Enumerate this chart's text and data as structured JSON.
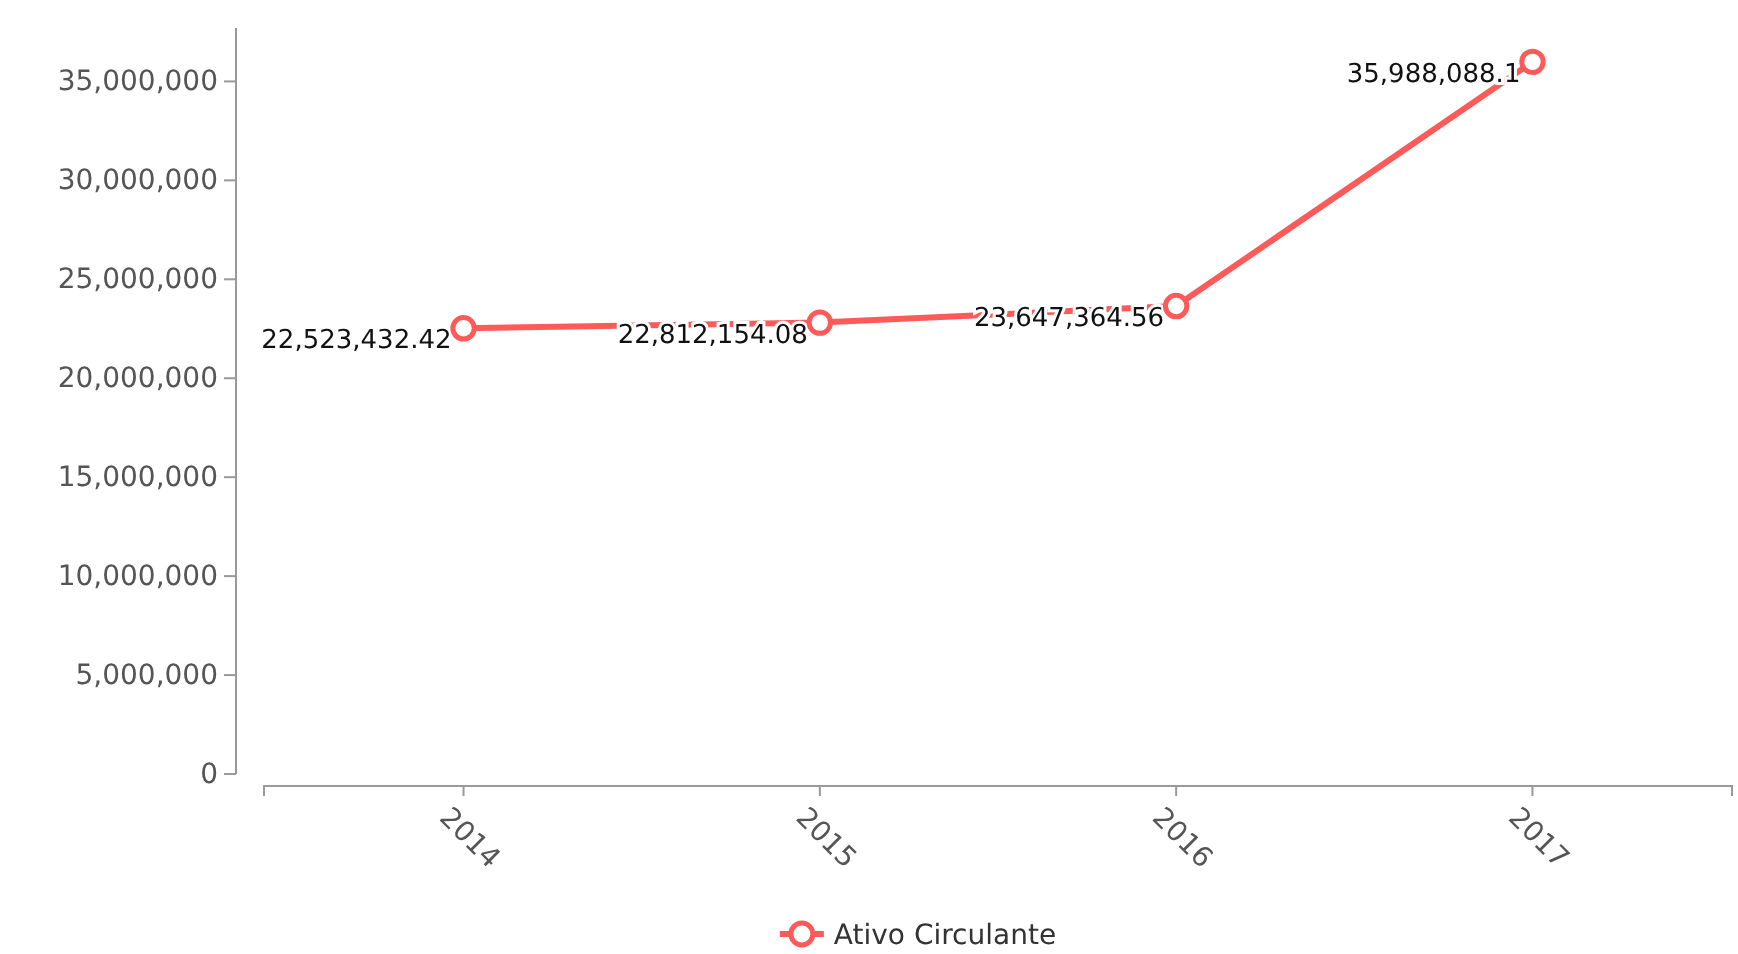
{
  "chart_data": {
    "type": "line",
    "categories": [
      "2014",
      "2015",
      "2016",
      "2017"
    ],
    "series": [
      {
        "name": "Ativo Circulante",
        "color": "#ff5a5a",
        "values": [
          22523432.42,
          22812154.08,
          23647364.56,
          35988088.1
        ],
        "value_labels": [
          "22,523,432.42",
          "22,812,154.08",
          "23,647,364.56",
          "35,988,088.1"
        ]
      }
    ],
    "ylim": [
      0,
      37700000
    ],
    "yticks": [
      {
        "value": 0,
        "label": "0"
      },
      {
        "value": 5000000,
        "label": "5,000,000"
      },
      {
        "value": 10000000,
        "label": "10,000,000"
      },
      {
        "value": 15000000,
        "label": "15,000,000"
      },
      {
        "value": 20000000,
        "label": "20,000,000"
      },
      {
        "value": 25000000,
        "label": "25,000,000"
      },
      {
        "value": 30000000,
        "label": "30,000,000"
      },
      {
        "value": 35000000,
        "label": "35,000,000"
      }
    ],
    "grid": false,
    "legend": "bottom",
    "marker": "circle",
    "line_style": "solid"
  }
}
